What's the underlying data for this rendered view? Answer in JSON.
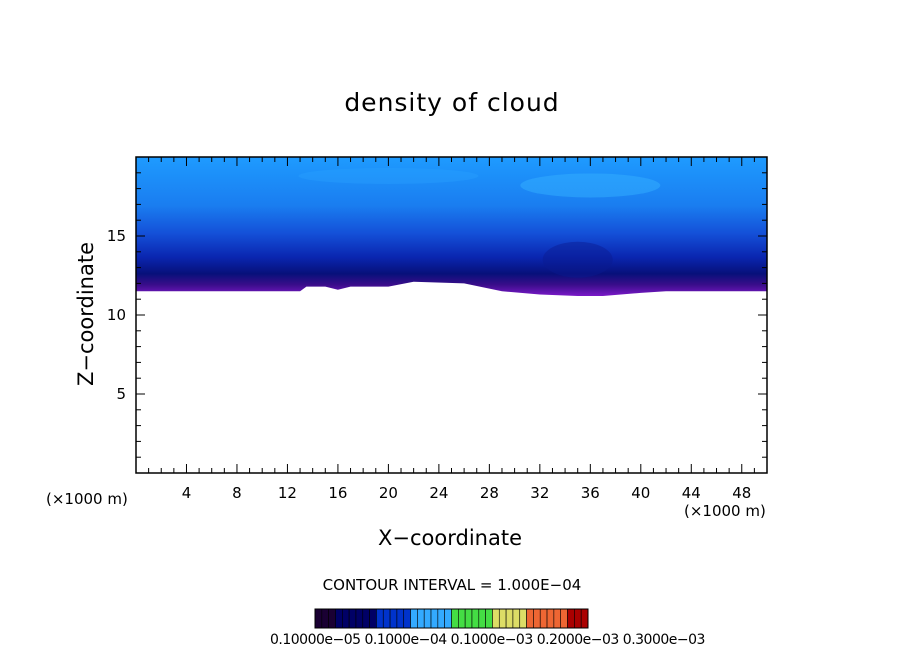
{
  "chart_data": {
    "type": "heatmap",
    "title": "density of cloud",
    "xlabel": "X−coordinate",
    "ylabel": "Z−coordinate",
    "x_unit_label": "(×1000 m)",
    "z_unit_label": "(×1000 m)",
    "xlim": [
      0,
      50
    ],
    "ylim": [
      0,
      20
    ],
    "x_ticks": [
      4,
      8,
      12,
      16,
      20,
      24,
      28,
      32,
      36,
      40,
      44,
      48
    ],
    "y_ticks": [
      5,
      10,
      15
    ],
    "contour_interval_text": "CONTOUR INTERVAL = 1.000E−04",
    "colorbar_labels_text": "0.10000e−05 0.1000e−04 0.1000e−03 0.2000e−03 0.3000e−03",
    "colorbar_colors": [
      "#1a0033",
      "#000066",
      "#0033cc",
      "#33aaff",
      "#44dd44",
      "#dddd66",
      "#ee6633",
      "#aa0000"
    ],
    "cloud_top_km": 20,
    "cloud_base_profile": [
      {
        "x": 0,
        "z": 11.5
      },
      {
        "x": 13,
        "z": 11.5
      },
      {
        "x": 13.5,
        "z": 11.8
      },
      {
        "x": 15,
        "z": 11.8
      },
      {
        "x": 16,
        "z": 11.6
      },
      {
        "x": 17,
        "z": 11.8
      },
      {
        "x": 20,
        "z": 11.8
      },
      {
        "x": 22,
        "z": 12.1
      },
      {
        "x": 26,
        "z": 12.0
      },
      {
        "x": 29,
        "z": 11.5
      },
      {
        "x": 32,
        "z": 11.3
      },
      {
        "x": 35,
        "z": 11.2
      },
      {
        "x": 37,
        "z": 11.2
      },
      {
        "x": 40,
        "z": 11.4
      },
      {
        "x": 42,
        "z": 11.5
      },
      {
        "x": 50,
        "z": 11.5
      }
    ],
    "grid": false
  }
}
